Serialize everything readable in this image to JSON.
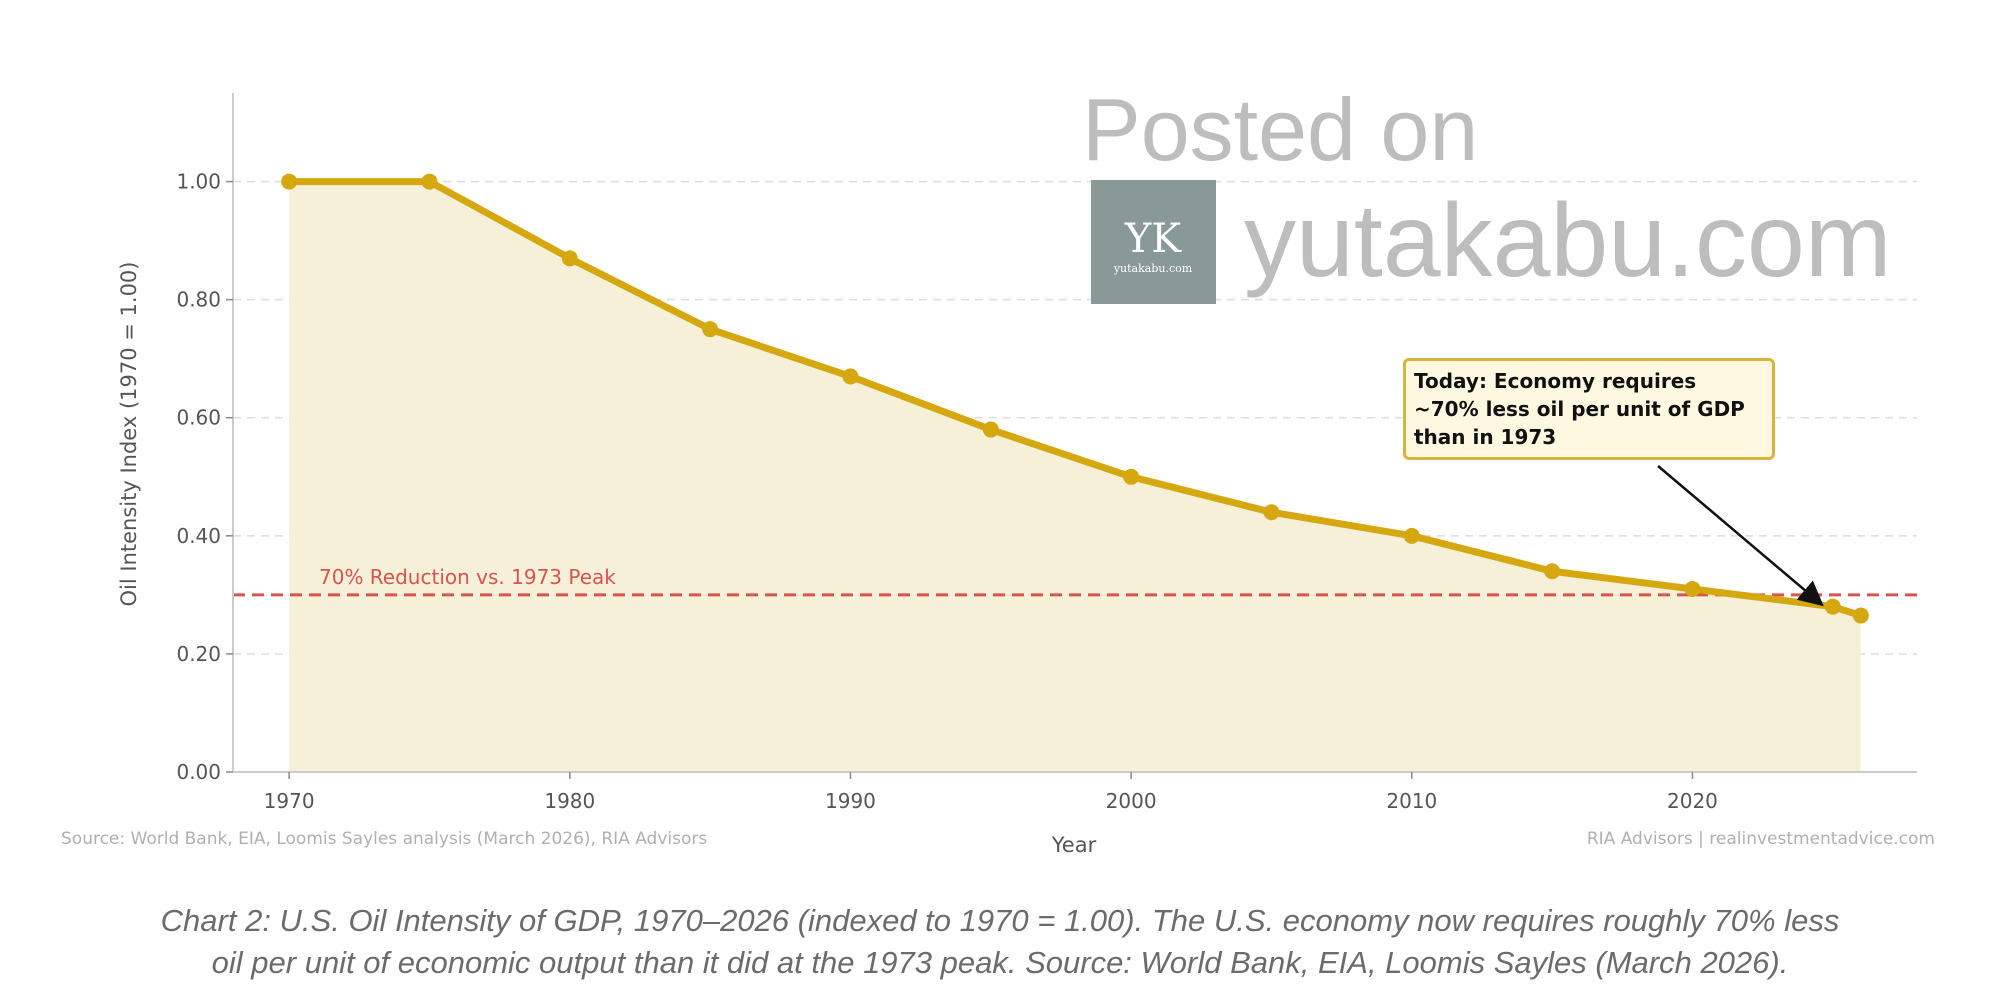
{
  "chart_data": {
    "type": "line",
    "title": "",
    "xlabel": "Year",
    "ylabel": "Oil Intensity Index (1970 = 1.00)",
    "x": [
      1970,
      1975,
      1980,
      1985,
      1990,
      1995,
      2000,
      2005,
      2010,
      2015,
      2020,
      2025,
      2026
    ],
    "series": [
      {
        "name": "Oil Intensity Index",
        "values": [
          1.0,
          1.0,
          0.87,
          0.75,
          0.67,
          0.58,
          0.5,
          0.44,
          0.4,
          0.34,
          0.31,
          0.28,
          0.265
        ]
      }
    ],
    "xlim": [
      1968,
      2028
    ],
    "ylim": [
      0,
      1.15
    ],
    "xticks": [
      1970,
      1980,
      1990,
      2000,
      2010,
      2020
    ],
    "yticks": [
      0,
      0.2,
      0.4,
      0.6,
      0.8,
      1.0
    ],
    "ytick_labels": [
      "0.00",
      "0.20",
      "0.40",
      "0.60",
      "0.80",
      "1.00"
    ],
    "grid": "horizontal dashed",
    "reference_line": {
      "y": 0.3,
      "label": "70% Reduction vs. 1973 Peak",
      "color": "#D9534F"
    },
    "annotation": {
      "lines": [
        "Today: Economy requires",
        "~70% less oil per unit of GDP",
        "than in 1973"
      ],
      "target_x": 2025,
      "target_y": 0.28
    },
    "colors": {
      "line": "#D4A80E",
      "fill": "#F7F0D9"
    }
  },
  "footer": {
    "source_left": "Source: World Bank, EIA, Loomis Sayles analysis (March 2026), RIA Advisors",
    "source_right": "RIA Advisors | realinvestmentadvice.com"
  },
  "watermark": {
    "line1": "Posted on",
    "site": "yutakabu.com",
    "logo_letters": "YK",
    "logo_sub": "yutakabu.com"
  },
  "caption": {
    "line1": "Chart 2: U.S. Oil Intensity of GDP, 1970–2026 (indexed to 1970 = 1.00). The U.S. economy now requires roughly 70% less",
    "line2": "oil per unit of economic output than it did at the 1973 peak. Source: World Bank, EIA, Loomis Sayles (March 2026)."
  }
}
